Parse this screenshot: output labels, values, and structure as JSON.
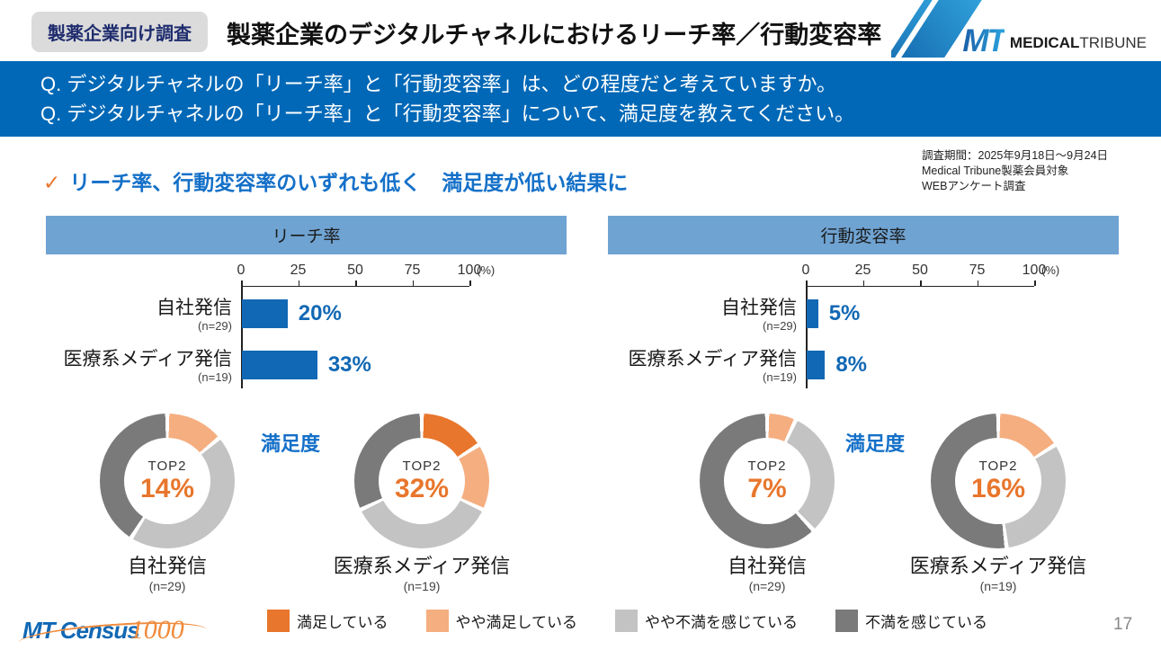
{
  "header": {
    "badge": "製薬企業向け調査",
    "title": "製薬企業のデジタルチャネルにおけるリーチ率／行動変容率",
    "logo": {
      "mt": "MT",
      "medical": "MEDICAL",
      "tribune": "TRIBUNE"
    }
  },
  "questions": {
    "line1": "Q. デジタルチャネルの「リーチ率」と「行動変容率」は、どの程度だと考えていますか。",
    "line2": "Q. デジタルチャネルの「リーチ率」と「行動変容率」について、満足度を教えてください。"
  },
  "survey_info": {
    "line1": "調査期間：2025年9月18日～9月24日",
    "line2": "Medical Tribune製薬会員対象",
    "line3": "WEBアンケート調査"
  },
  "key_message": {
    "check": "✓",
    "text": "リーチ率、行動変容率のいずれも低く　満足度が低い結果に"
  },
  "colors": {
    "question_band": "#0068b7",
    "panel_band": "#6fa3d2",
    "bar": "#1168b4",
    "accent_blue_text": "#1470c8",
    "satisfied": "#e8762c",
    "somewhat_satisfied": "#f5ae80",
    "somewhat_dissatisfied": "#c3c3c3",
    "dissatisfied": "#7a7a7a"
  },
  "panels": [
    {
      "band_title": "リーチ率",
      "axis": {
        "ticks": [
          "0",
          "25",
          "50",
          "75",
          "100"
        ],
        "unit": "(%)"
      },
      "bars": [
        {
          "label": "自社発信",
          "n": "(n=29)",
          "value": 20,
          "value_label": "20%"
        },
        {
          "label": "医療系メディア発信",
          "n": "(n=19)",
          "value": 33,
          "value_label": "33%"
        }
      ],
      "satisfaction_label": "満足度",
      "donuts": [
        {
          "name": "自社発信",
          "n": "(n=29)",
          "top2_label": "TOP2",
          "top2_value": "14%",
          "segments": [
            {
              "label": "満足している",
              "value": 0,
              "color": "#e8762c"
            },
            {
              "label": "やや満足している",
              "value": 14,
              "color": "#f5ae80"
            },
            {
              "label": "やや不満を感じている",
              "value": 45,
              "color": "#c3c3c3"
            },
            {
              "label": "不満を感じている",
              "value": 41,
              "color": "#7a7a7a"
            }
          ]
        },
        {
          "name": "医療系メディア発信",
          "n": "(n=19)",
          "top2_label": "TOP2",
          "top2_value": "32%",
          "segments": [
            {
              "label": "満足している",
              "value": 16,
              "color": "#e8762c"
            },
            {
              "label": "やや満足している",
              "value": 16,
              "color": "#f5ae80"
            },
            {
              "label": "やや不満を感じている",
              "value": 36,
              "color": "#c3c3c3"
            },
            {
              "label": "不満を感じている",
              "value": 32,
              "color": "#7a7a7a"
            }
          ]
        }
      ]
    },
    {
      "band_title": "行動変容率",
      "axis": {
        "ticks": [
          "0",
          "25",
          "50",
          "75",
          "100"
        ],
        "unit": "(%)"
      },
      "bars": [
        {
          "label": "自社発信",
          "n": "(n=29)",
          "value": 5,
          "value_label": "5%"
        },
        {
          "label": "医療系メディア発信",
          "n": "(n=19)",
          "value": 8,
          "value_label": "8%"
        }
      ],
      "satisfaction_label": "満足度",
      "donuts": [
        {
          "name": "自社発信",
          "n": "(n=29)",
          "top2_label": "TOP2",
          "top2_value": "7%",
          "segments": [
            {
              "label": "満足している",
              "value": 0,
              "color": "#e8762c"
            },
            {
              "label": "やや満足している",
              "value": 7,
              "color": "#f5ae80"
            },
            {
              "label": "やや不満を感じている",
              "value": 31,
              "color": "#c3c3c3"
            },
            {
              "label": "不満を感じている",
              "value": 62,
              "color": "#7a7a7a"
            }
          ]
        },
        {
          "name": "医療系メディア発信",
          "n": "(n=19)",
          "top2_label": "TOP2",
          "top2_value": "16%",
          "segments": [
            {
              "label": "満足している",
              "value": 0,
              "color": "#e8762c"
            },
            {
              "label": "やや満足している",
              "value": 16,
              "color": "#f5ae80"
            },
            {
              "label": "やや不満を感じている",
              "value": 32,
              "color": "#c3c3c3"
            },
            {
              "label": "不満を感じている",
              "value": 52,
              "color": "#7a7a7a"
            }
          ]
        }
      ]
    }
  ],
  "legend": {
    "items": [
      {
        "label": "満足している",
        "color": "#e8762c"
      },
      {
        "label": "やや満足している",
        "color": "#f5ae80"
      },
      {
        "label": "やや不満を感じている",
        "color": "#c3c3c3"
      },
      {
        "label": "不満を感じている",
        "color": "#7a7a7a"
      }
    ]
  },
  "footer": {
    "logo_text": "MT Census",
    "logo_number": "1000",
    "page_number": "17"
  },
  "chart_data": [
    {
      "type": "bar",
      "title": "リーチ率",
      "orientation": "horizontal",
      "categories": [
        "自社発信 (n=29)",
        "医療系メディア発信 (n=19)"
      ],
      "values": [
        20,
        33
      ],
      "xlabel": "(%)",
      "xlim": [
        0,
        100
      ],
      "xticks": [
        0,
        25,
        50,
        75,
        100
      ]
    },
    {
      "type": "bar",
      "title": "行動変容率",
      "orientation": "horizontal",
      "categories": [
        "自社発信 (n=29)",
        "医療系メディア発信 (n=19)"
      ],
      "values": [
        5,
        8
      ],
      "xlabel": "(%)",
      "xlim": [
        0,
        100
      ],
      "xticks": [
        0,
        25,
        50,
        75,
        100
      ]
    },
    {
      "type": "pie",
      "subtype": "donut",
      "title": "満足度（リーチ率） 自社発信 (n=29)",
      "center_label": "TOP2 14%",
      "categories": [
        "満足している",
        "やや満足している",
        "やや不満を感じている",
        "不満を感じている"
      ],
      "values": [
        0,
        14,
        45,
        41
      ]
    },
    {
      "type": "pie",
      "subtype": "donut",
      "title": "満足度（リーチ率） 医療系メディア発信 (n=19)",
      "center_label": "TOP2 32%",
      "categories": [
        "満足している",
        "やや満足している",
        "やや不満を感じている",
        "不満を感じている"
      ],
      "values": [
        16,
        16,
        36,
        32
      ]
    },
    {
      "type": "pie",
      "subtype": "donut",
      "title": "満足度（行動変容率） 自社発信 (n=29)",
      "center_label": "TOP2 7%",
      "categories": [
        "満足している",
        "やや満足している",
        "やや不満を感じている",
        "不満を感じている"
      ],
      "values": [
        0,
        7,
        31,
        62
      ]
    },
    {
      "type": "pie",
      "subtype": "donut",
      "title": "満足度（行動変容率） 医療系メディア発信 (n=19)",
      "center_label": "TOP2 16%",
      "categories": [
        "満足している",
        "やや満足している",
        "やや不満を感じている",
        "不満を感じている"
      ],
      "values": [
        0,
        16,
        32,
        52
      ]
    }
  ]
}
